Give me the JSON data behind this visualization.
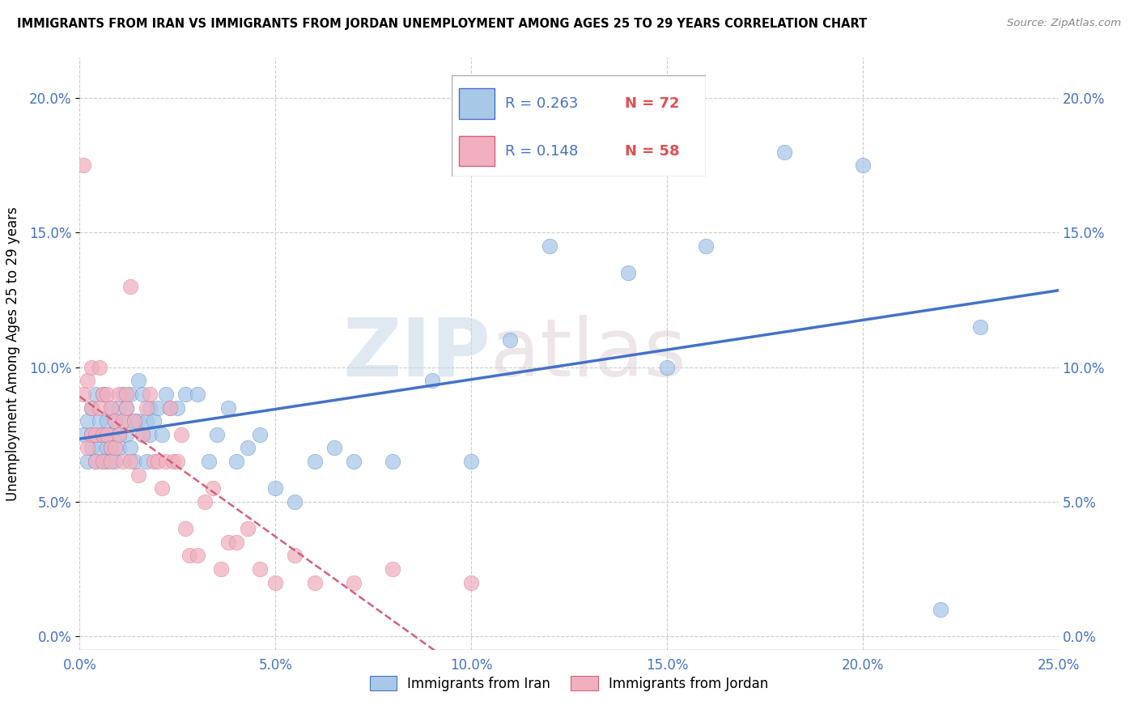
{
  "title": "IMMIGRANTS FROM IRAN VS IMMIGRANTS FROM JORDAN UNEMPLOYMENT AMONG AGES 25 TO 29 YEARS CORRELATION CHART",
  "source": "Source: ZipAtlas.com",
  "ylabel": "Unemployment Among Ages 25 to 29 years",
  "xlim": [
    0,
    0.25
  ],
  "ylim": [
    -0.005,
    0.215
  ],
  "watermark": "ZIPAtlas",
  "legend_iran_R": "R = 0.263",
  "legend_iran_N": "N = 72",
  "legend_jordan_R": "R = 0.148",
  "legend_jordan_N": "N = 58",
  "color_iran": "#a8c8e8",
  "color_jordan": "#f0b0c0",
  "line_iran": "#4472c4",
  "line_jordan": "#d4607a",
  "iran_x": [
    0.001,
    0.002,
    0.002,
    0.003,
    0.003,
    0.003,
    0.004,
    0.004,
    0.005,
    0.005,
    0.005,
    0.006,
    0.006,
    0.006,
    0.007,
    0.007,
    0.007,
    0.008,
    0.008,
    0.008,
    0.009,
    0.009,
    0.01,
    0.01,
    0.01,
    0.011,
    0.011,
    0.012,
    0.012,
    0.013,
    0.013,
    0.014,
    0.014,
    0.015,
    0.015,
    0.016,
    0.016,
    0.017,
    0.017,
    0.018,
    0.018,
    0.019,
    0.02,
    0.021,
    0.022,
    0.023,
    0.025,
    0.027,
    0.03,
    0.033,
    0.035,
    0.038,
    0.04,
    0.043,
    0.046,
    0.05,
    0.055,
    0.06,
    0.065,
    0.07,
    0.08,
    0.09,
    0.1,
    0.11,
    0.12,
    0.14,
    0.15,
    0.16,
    0.18,
    0.2,
    0.22,
    0.23
  ],
  "iran_y": [
    0.075,
    0.065,
    0.08,
    0.07,
    0.075,
    0.085,
    0.065,
    0.09,
    0.07,
    0.075,
    0.08,
    0.065,
    0.075,
    0.09,
    0.07,
    0.08,
    0.065,
    0.085,
    0.07,
    0.075,
    0.08,
    0.065,
    0.075,
    0.085,
    0.07,
    0.09,
    0.08,
    0.075,
    0.085,
    0.07,
    0.09,
    0.08,
    0.065,
    0.095,
    0.08,
    0.075,
    0.09,
    0.08,
    0.065,
    0.085,
    0.075,
    0.08,
    0.085,
    0.075,
    0.09,
    0.085,
    0.085,
    0.09,
    0.09,
    0.065,
    0.075,
    0.085,
    0.065,
    0.07,
    0.075,
    0.055,
    0.05,
    0.065,
    0.07,
    0.065,
    0.065,
    0.095,
    0.065,
    0.11,
    0.145,
    0.135,
    0.1,
    0.145,
    0.18,
    0.175,
    0.01,
    0.115
  ],
  "jordan_x": [
    0.001,
    0.001,
    0.002,
    0.002,
    0.003,
    0.003,
    0.003,
    0.004,
    0.004,
    0.005,
    0.005,
    0.006,
    0.006,
    0.006,
    0.007,
    0.007,
    0.008,
    0.008,
    0.008,
    0.009,
    0.009,
    0.01,
    0.01,
    0.011,
    0.011,
    0.012,
    0.012,
    0.013,
    0.013,
    0.014,
    0.015,
    0.016,
    0.017,
    0.018,
    0.019,
    0.02,
    0.021,
    0.022,
    0.023,
    0.024,
    0.025,
    0.026,
    0.027,
    0.028,
    0.03,
    0.032,
    0.034,
    0.036,
    0.038,
    0.04,
    0.043,
    0.046,
    0.05,
    0.055,
    0.06,
    0.07,
    0.08,
    0.1
  ],
  "jordan_y": [
    0.175,
    0.09,
    0.095,
    0.07,
    0.1,
    0.085,
    0.075,
    0.075,
    0.065,
    0.1,
    0.085,
    0.09,
    0.075,
    0.065,
    0.09,
    0.075,
    0.085,
    0.07,
    0.065,
    0.08,
    0.07,
    0.09,
    0.075,
    0.08,
    0.065,
    0.085,
    0.09,
    0.065,
    0.13,
    0.08,
    0.06,
    0.075,
    0.085,
    0.09,
    0.065,
    0.065,
    0.055,
    0.065,
    0.085,
    0.065,
    0.065,
    0.075,
    0.04,
    0.03,
    0.03,
    0.05,
    0.055,
    0.025,
    0.035,
    0.035,
    0.04,
    0.025,
    0.02,
    0.03,
    0.02,
    0.02,
    0.025,
    0.02
  ]
}
